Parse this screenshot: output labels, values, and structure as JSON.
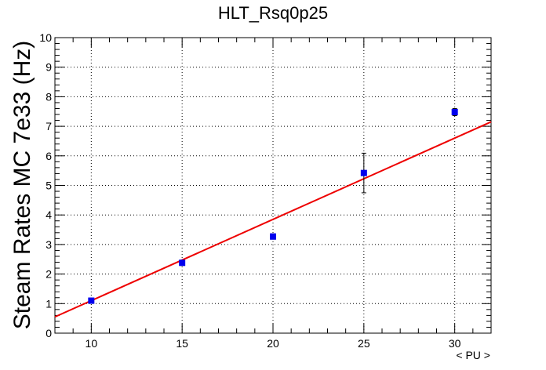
{
  "chart_data": {
    "type": "scatter",
    "title": "HLT_Rsq0p25",
    "xlabel": "< PU >",
    "ylabel": "Steam Rates MC 7e33 (Hz)",
    "xlim": [
      8,
      32
    ],
    "ylim": [
      0,
      10
    ],
    "x_ticks": [
      "10",
      "15",
      "20",
      "25",
      "30"
    ],
    "y_ticks": [
      "0",
      "1",
      "2",
      "3",
      "4",
      "5",
      "6",
      "7",
      "8",
      "9",
      "10"
    ],
    "grid": true,
    "series": [
      {
        "color": "#0000ee",
        "marker": "square",
        "x": [
          10,
          15,
          20,
          25,
          30
        ],
        "y": [
          1.1,
          2.38,
          3.27,
          5.42,
          7.48
        ],
        "y_err": [
          0.07,
          0.09,
          0.09,
          0.67,
          0.12
        ]
      }
    ],
    "fit_line": {
      "color": "#ee0000",
      "x": [
        8,
        32
      ],
      "y": [
        0.55,
        7.15
      ]
    }
  }
}
